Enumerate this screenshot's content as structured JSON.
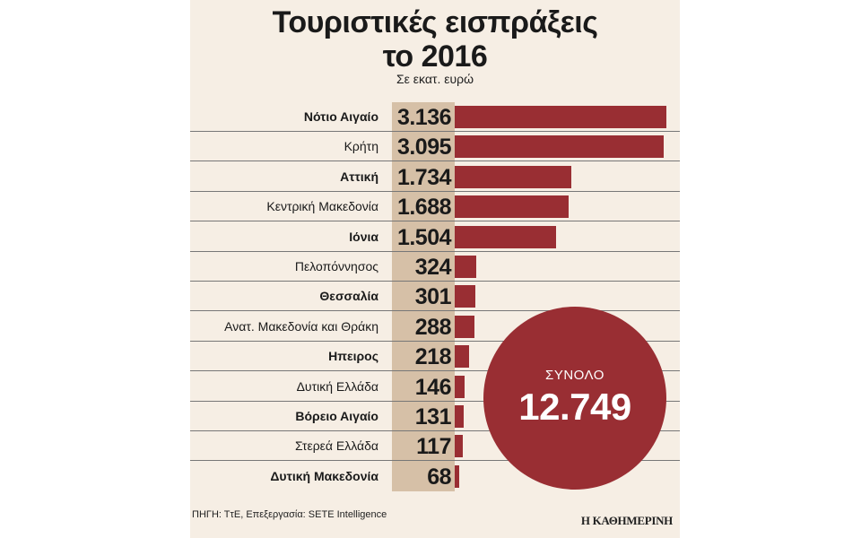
{
  "chart_data": {
    "type": "bar",
    "orientation": "horizontal",
    "title_line1": "Τουριστικές εισπράξεις",
    "title_line2": "το 2016",
    "subtitle": "Σε εκατ. ευρώ",
    "categories": [
      "Νότιο Αιγαίο",
      "Κρήτη",
      "Αττική",
      "Κεντρική Μακεδονία",
      "Ιόνια",
      "Πελοπόννησος",
      "Θεσσαλία",
      "Ανατ. Μακεδονία και Θράκη",
      "Ηπειρος",
      "Δυτική Ελλάδα",
      "Βόρειο Αιγαίο",
      "Στερεά Ελλάδα",
      "Δυτική Μακεδονία"
    ],
    "values": [
      3136,
      3095,
      1734,
      1688,
      1504,
      324,
      301,
      288,
      218,
      146,
      131,
      117,
      68
    ],
    "value_labels": [
      "3.136",
      "3.095",
      "1.734",
      "1.688",
      "1.504",
      "324",
      "301",
      "288",
      "218",
      "146",
      "131",
      "117",
      "68"
    ],
    "bold_rows": [
      true,
      false,
      true,
      false,
      true,
      false,
      true,
      false,
      true,
      false,
      true,
      false,
      true
    ],
    "xlim": [
      0,
      3136
    ],
    "total_label": "ΣΥΝΟΛΟ",
    "total_value": "12.749",
    "source": "ΠΗΓΗ: ΤτΕ, Επεξεργασία: SETE Intelligence",
    "brand": "Η ΚΑΘΗΜΕΡΙΝΗ",
    "bar_color": "#992e33"
  }
}
